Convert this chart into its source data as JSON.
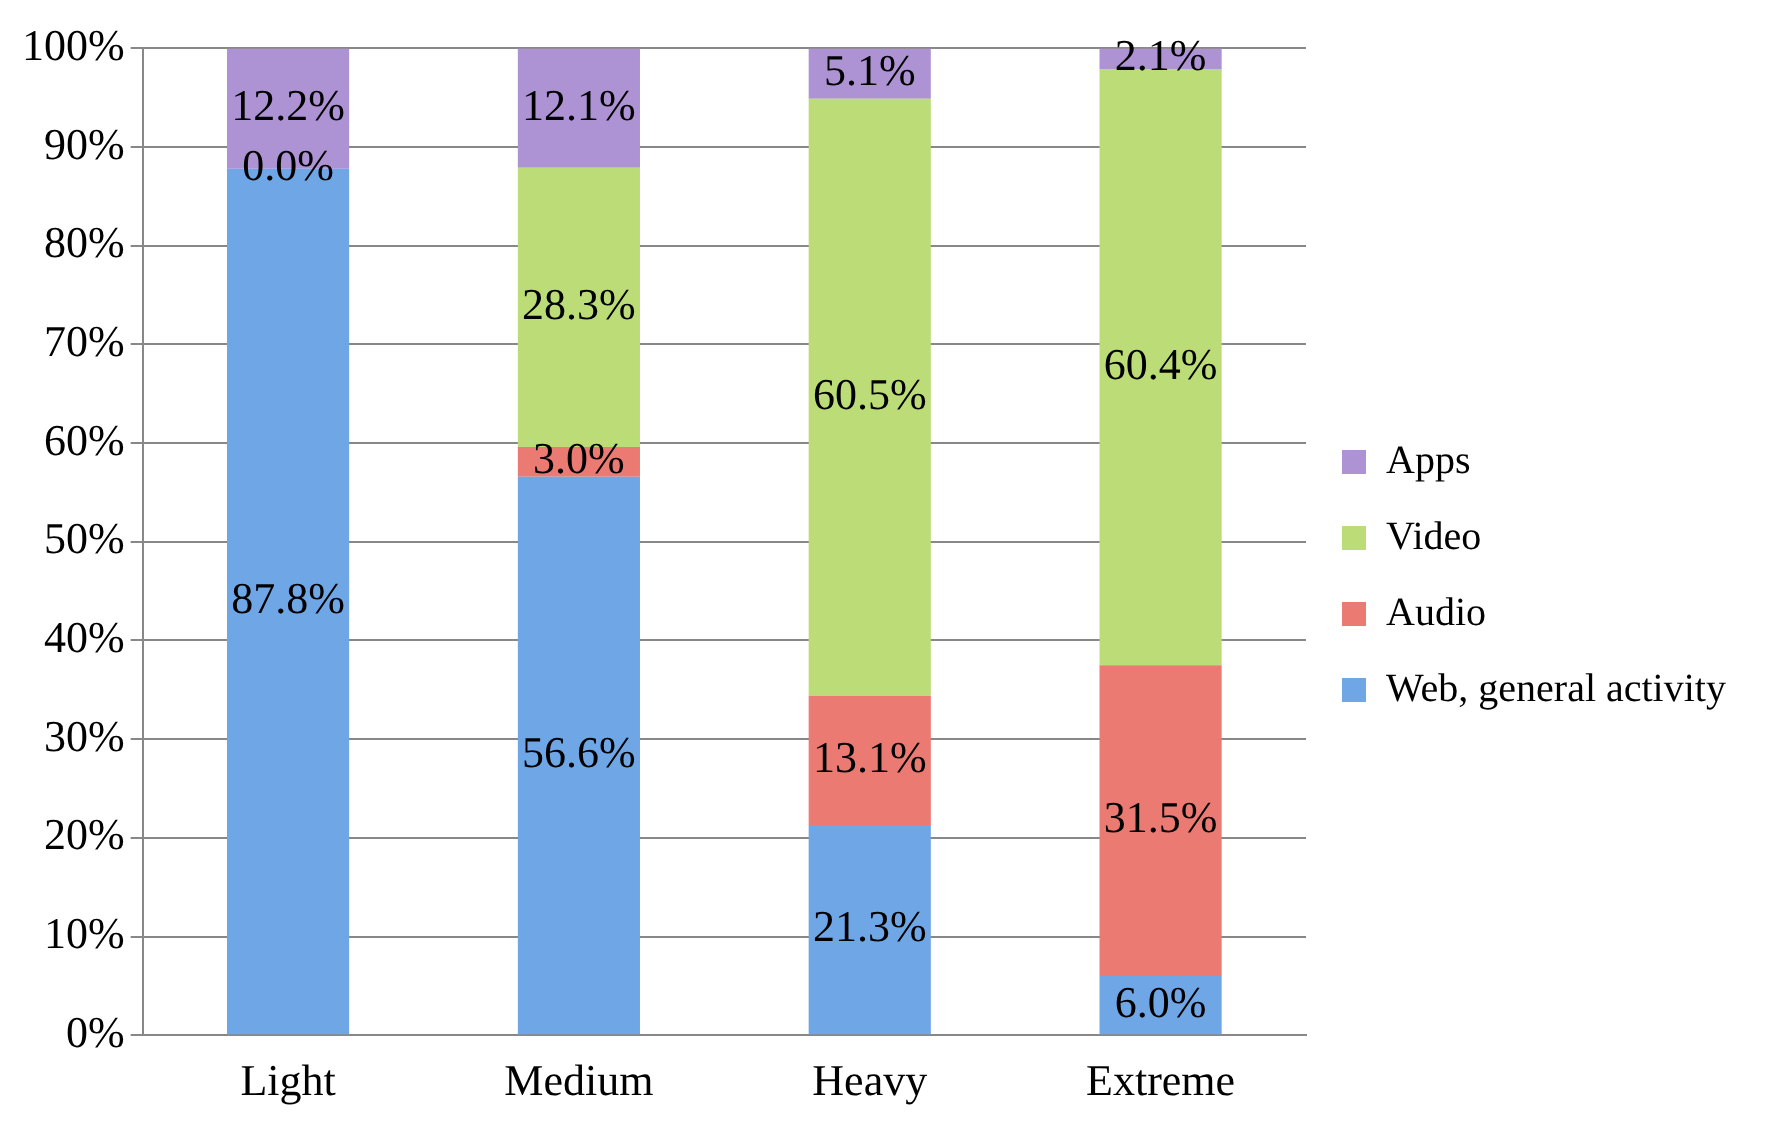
{
  "chart_data": {
    "type": "bar",
    "stacked": true,
    "categories": [
      "Light",
      "Medium",
      "Heavy",
      "Extreme"
    ],
    "series": [
      {
        "name": "Web, general activity",
        "color": "#6fa6e6",
        "values": [
          87.8,
          56.6,
          21.3,
          6.0
        ],
        "value_labels": [
          "87.8%",
          "56.6%",
          "21.3%",
          "6.0%"
        ]
      },
      {
        "name": "Audio",
        "color": "#ea7a72",
        "values": [
          0.0,
          3.0,
          13.1,
          31.5
        ],
        "value_labels": [
          "0.0%",
          "3.0%",
          "13.1%",
          "31.5%"
        ]
      },
      {
        "name": "Video",
        "color": "#bcdc78",
        "values": [
          0.0,
          28.3,
          60.5,
          60.4
        ],
        "value_labels": [
          null,
          "28.3%",
          "60.5%",
          "60.4%"
        ]
      },
      {
        "name": "Apps",
        "color": "#ad92d4",
        "values": [
          12.2,
          12.1,
          5.1,
          2.1
        ],
        "value_labels": [
          "12.2%",
          "12.1%",
          "5.1%",
          "2.1%"
        ]
      }
    ],
    "ylim": [
      0,
      100
    ],
    "yticks": [
      {
        "value": 0,
        "label": "0%"
      },
      {
        "value": 10,
        "label": "10%"
      },
      {
        "value": 20,
        "label": "20%"
      },
      {
        "value": 30,
        "label": "30%"
      },
      {
        "value": 40,
        "label": "40%"
      },
      {
        "value": 50,
        "label": "50%"
      },
      {
        "value": 60,
        "label": "60%"
      },
      {
        "value": 70,
        "label": "70%"
      },
      {
        "value": 80,
        "label": "80%"
      },
      {
        "value": 90,
        "label": "90%"
      },
      {
        "value": 100,
        "label": "100%"
      }
    ],
    "grid": "y",
    "legend": "right"
  }
}
